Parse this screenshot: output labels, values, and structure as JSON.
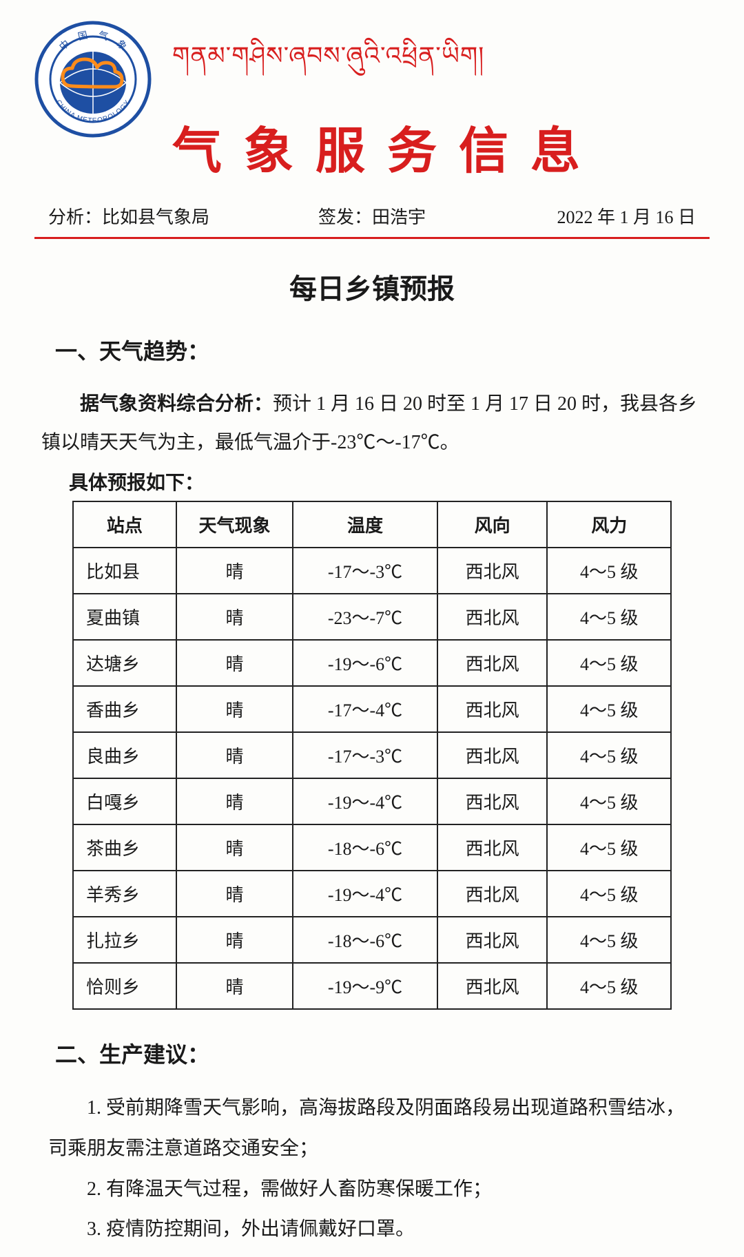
{
  "header": {
    "tibetan_title": "གནམ་གཤིས་ཞབས་ཞུའི་འཕྲིན་ཡིག།",
    "chinese_title": "气象服务信息",
    "logo_outer_text_top": "中 国 气 象",
    "logo_outer_text_bottom": "CHINA METEOROLOGY",
    "logo_colors": {
      "ring": "#1e4fa3",
      "globe": "#1e4fa3",
      "cloud_stroke": "#ff8c1a",
      "bg": "#ffffff"
    }
  },
  "issuer": {
    "analysis_label": "分析：",
    "analysis_value": "比如县气象局",
    "approve_label": "签发：",
    "approve_value": "田浩宇",
    "date": "2022 年 1 月 16 日"
  },
  "subtitle": "每日乡镇预报",
  "section1": {
    "heading": "一、天气趋势：",
    "lead_bold": "据气象资料综合分析：",
    "lead_rest": "预计 1 月 16 日 20 时至 1 月 17 日 20 时，我县各乡镇以晴天天气为主，最低气温介于-23℃～-17℃。",
    "sub_heading": "具体预报如下："
  },
  "forecast_table": {
    "columns": [
      "站点",
      "天气现象",
      "温度",
      "风向",
      "风力"
    ],
    "col_widths": [
      "150px",
      "170px",
      "210px",
      "160px",
      "180px"
    ],
    "rows": [
      [
        "比如县",
        "晴",
        "-17～-3℃",
        "西北风",
        "4～5 级"
      ],
      [
        "夏曲镇",
        "晴",
        "-23～-7℃",
        "西北风",
        "4～5 级"
      ],
      [
        "达塘乡",
        "晴",
        "-19～-6℃",
        "西北风",
        "4～5 级"
      ],
      [
        "香曲乡",
        "晴",
        "-17～-4℃",
        "西北风",
        "4～5 级"
      ],
      [
        "良曲乡",
        "晴",
        "-17～-3℃",
        "西北风",
        "4～5 级"
      ],
      [
        "白嘎乡",
        "晴",
        "-19～-4℃",
        "西北风",
        "4～5 级"
      ],
      [
        "茶曲乡",
        "晴",
        "-18～-6℃",
        "西北风",
        "4～5 级"
      ],
      [
        "羊秀乡",
        "晴",
        "-19～-4℃",
        "西北风",
        "4～5 级"
      ],
      [
        "扎拉乡",
        "晴",
        "-18～-6℃",
        "西北风",
        "4～5 级"
      ],
      [
        "恰则乡",
        "晴",
        "-19～-9℃",
        "西北风",
        "4～5 级"
      ]
    ]
  },
  "section2": {
    "heading": "二、生产建议：",
    "items": [
      "1. 受前期降雪天气影响，高海拔路段及阴面路段易出现道路积雪结冰，司乘朋友需注意道路交通安全；",
      "2.  有降温天气过程，需做好人畜防寒保暖工作；",
      "3.  疫情防控期间，外出请佩戴好口罩。"
    ]
  },
  "styling": {
    "page_bg": "#fdfdfb",
    "title_color": "#d81e1e",
    "rule_color": "#d81e1e",
    "table_border": "#222222",
    "body_fontsize": 28,
    "title_fontsize": 72,
    "tibetan_fontsize": 36,
    "subtitle_fontsize": 40
  }
}
